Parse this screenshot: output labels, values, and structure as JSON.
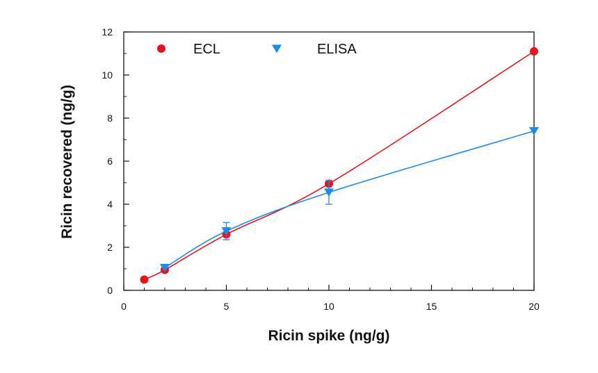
{
  "chart_data": {
    "type": "line",
    "title": "",
    "xlabel": "Ricin spike (ng/g)",
    "ylabel": "Ricin recovered (ng/g)",
    "xlim": [
      0,
      20
    ],
    "ylim": [
      0,
      12
    ],
    "x_ticks": [
      0,
      5,
      10,
      15,
      20
    ],
    "y_ticks": [
      0,
      2,
      4,
      6,
      8,
      10,
      12
    ],
    "x_minor_step": 1,
    "y_minor_step": 1,
    "grid": false,
    "legend_position": "top-left",
    "series": [
      {
        "name": "ECL",
        "marker": "circle",
        "color": "#e8121c",
        "x": [
          1,
          2,
          5,
          10,
          20
        ],
        "y": [
          0.5,
          0.95,
          2.6,
          4.95,
          11.1
        ],
        "error": [
          0,
          0,
          0,
          0,
          0
        ]
      },
      {
        "name": "ELISA",
        "marker": "triangle-down",
        "color": "#1a8cf0",
        "x": [
          2,
          5,
          10,
          20
        ],
        "y": [
          1.05,
          2.75,
          4.55,
          7.4
        ],
        "error": [
          0,
          0.4,
          0.55,
          0
        ]
      }
    ]
  }
}
